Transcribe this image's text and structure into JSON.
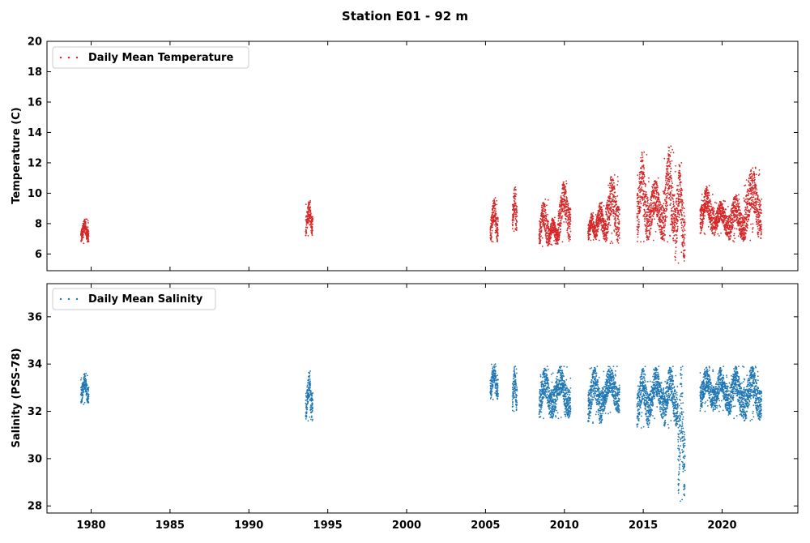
{
  "chart_data": {
    "type": "scatter",
    "title": "Station E01 - 92 m",
    "x_ticks": [
      "1980",
      "1985",
      "1990",
      "1995",
      "2000",
      "2005",
      "2010",
      "2015",
      "2020"
    ],
    "xlim": [
      1977.2,
      2024.8
    ],
    "panels": [
      {
        "id": "temperature",
        "ylabel": "Temperature (C)",
        "ylim": [
          4.9,
          20
        ],
        "y_ticks": [
          "6",
          "8",
          "10",
          "12",
          "14",
          "16",
          "18",
          "20"
        ],
        "legend": "top-left",
        "series": [
          {
            "name": "Daily Mean Temperature",
            "color": "#d62728",
            "segments": [
              {
                "start": 1979.35,
                "end": 1979.85,
                "min": 6.7,
                "max": 8.3
              },
              {
                "start": 1993.6,
                "end": 1994.05,
                "min": 7.2,
                "max": 9.5
              },
              {
                "start": 2005.3,
                "end": 2005.8,
                "min": 6.8,
                "max": 9.7
              },
              {
                "start": 2006.7,
                "end": 2007.0,
                "min": 7.5,
                "max": 10.4
              },
              {
                "start": 2008.4,
                "end": 2009.0,
                "min": 6.5,
                "max": 9.6
              },
              {
                "start": 2009.0,
                "end": 2009.6,
                "min": 6.6,
                "max": 8.4
              },
              {
                "start": 2009.6,
                "end": 2010.4,
                "min": 6.8,
                "max": 10.8
              },
              {
                "start": 2011.5,
                "end": 2012.0,
                "min": 6.9,
                "max": 8.7
              },
              {
                "start": 2012.0,
                "end": 2012.6,
                "min": 6.9,
                "max": 9.4
              },
              {
                "start": 2012.6,
                "end": 2013.5,
                "min": 6.7,
                "max": 11.2
              },
              {
                "start": 2014.6,
                "end": 2015.3,
                "min": 6.8,
                "max": 12.7
              },
              {
                "start": 2015.3,
                "end": 2016.3,
                "min": 6.9,
                "max": 11.0
              },
              {
                "start": 2016.3,
                "end": 2017.0,
                "min": 6.8,
                "max": 13.1
              },
              {
                "start": 2017.0,
                "end": 2017.65,
                "min": 5.4,
                "max": 12.0
              },
              {
                "start": 2018.6,
                "end": 2019.5,
                "min": 7.3,
                "max": 10.5
              },
              {
                "start": 2019.5,
                "end": 2020.4,
                "min": 7.2,
                "max": 9.5
              },
              {
                "start": 2020.4,
                "end": 2021.4,
                "min": 6.8,
                "max": 9.9
              },
              {
                "start": 2021.4,
                "end": 2022.5,
                "min": 6.9,
                "max": 11.7
              }
            ]
          }
        ]
      },
      {
        "id": "salinity",
        "ylabel": "Salinity (PSS-78)",
        "ylim": [
          27.7,
          37.4
        ],
        "y_ticks": [
          "28",
          "30",
          "32",
          "34",
          "36"
        ],
        "legend": "top-left",
        "series": [
          {
            "name": "Daily Mean Salinity",
            "color": "#1f77b4",
            "segments": [
              {
                "start": 1979.35,
                "end": 1979.85,
                "min": 32.3,
                "max": 33.6
              },
              {
                "start": 1993.6,
                "end": 1994.05,
                "min": 31.6,
                "max": 33.7
              },
              {
                "start": 2005.3,
                "end": 2005.8,
                "min": 32.5,
                "max": 34.0
              },
              {
                "start": 2006.7,
                "end": 2007.0,
                "min": 32.0,
                "max": 33.9
              },
              {
                "start": 2008.4,
                "end": 2009.2,
                "min": 31.7,
                "max": 33.9
              },
              {
                "start": 2009.2,
                "end": 2010.4,
                "min": 31.7,
                "max": 33.9
              },
              {
                "start": 2011.5,
                "end": 2012.4,
                "min": 31.5,
                "max": 33.9
              },
              {
                "start": 2012.4,
                "end": 2013.5,
                "min": 31.9,
                "max": 33.9
              },
              {
                "start": 2014.6,
                "end": 2015.4,
                "min": 31.3,
                "max": 33.9
              },
              {
                "start": 2015.4,
                "end": 2016.3,
                "min": 31.7,
                "max": 33.9
              },
              {
                "start": 2016.3,
                "end": 2017.2,
                "min": 31.3,
                "max": 33.9
              },
              {
                "start": 2017.2,
                "end": 2017.65,
                "min": 28.2,
                "max": 33.9
              },
              {
                "start": 2018.6,
                "end": 2019.5,
                "min": 32.0,
                "max": 33.9
              },
              {
                "start": 2019.5,
                "end": 2020.4,
                "min": 32.0,
                "max": 33.9
              },
              {
                "start": 2020.4,
                "end": 2021.4,
                "min": 31.7,
                "max": 33.9
              },
              {
                "start": 2021.4,
                "end": 2022.5,
                "min": 31.6,
                "max": 33.9
              }
            ]
          }
        ]
      }
    ]
  }
}
